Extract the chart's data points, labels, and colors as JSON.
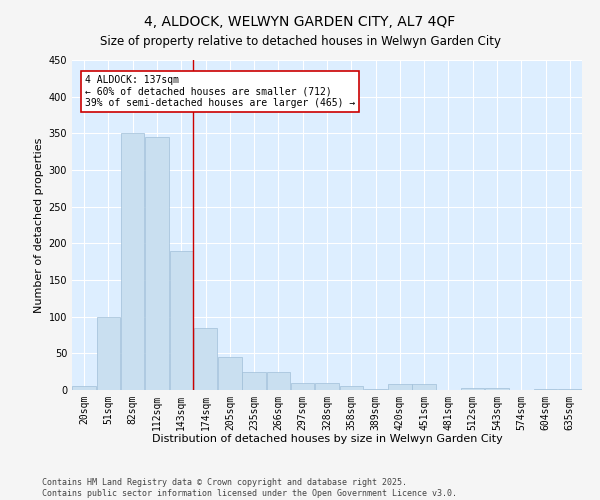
{
  "title": "4, ALDOCK, WELWYN GARDEN CITY, AL7 4QF",
  "subtitle": "Size of property relative to detached houses in Welwyn Garden City",
  "xlabel": "Distribution of detached houses by size in Welwyn Garden City",
  "ylabel": "Number of detached properties",
  "categories": [
    "20sqm",
    "51sqm",
    "82sqm",
    "112sqm",
    "143sqm",
    "174sqm",
    "205sqm",
    "235sqm",
    "266sqm",
    "297sqm",
    "328sqm",
    "358sqm",
    "389sqm",
    "420sqm",
    "451sqm",
    "481sqm",
    "512sqm",
    "543sqm",
    "574sqm",
    "604sqm",
    "635sqm"
  ],
  "values": [
    5,
    100,
    350,
    345,
    190,
    85,
    45,
    25,
    25,
    10,
    10,
    5,
    2,
    8,
    8,
    0,
    3,
    3,
    0,
    2,
    2
  ],
  "bar_color": "#c9dff0",
  "bar_edge_color": "#a0bfd8",
  "bar_width": 0.97,
  "ylim": [
    0,
    450
  ],
  "yticks": [
    0,
    50,
    100,
    150,
    200,
    250,
    300,
    350,
    400,
    450
  ],
  "vline_x": 4.48,
  "vline_color": "#cc0000",
  "annotation_text": "4 ALDOCK: 137sqm\n← 60% of detached houses are smaller (712)\n39% of semi-detached houses are larger (465) →",
  "bg_color": "#ddeeff",
  "grid_color": "#ffffff",
  "footer_line1": "Contains HM Land Registry data © Crown copyright and database right 2025.",
  "footer_line2": "Contains public sector information licensed under the Open Government Licence v3.0.",
  "fig_facecolor": "#f5f5f5"
}
